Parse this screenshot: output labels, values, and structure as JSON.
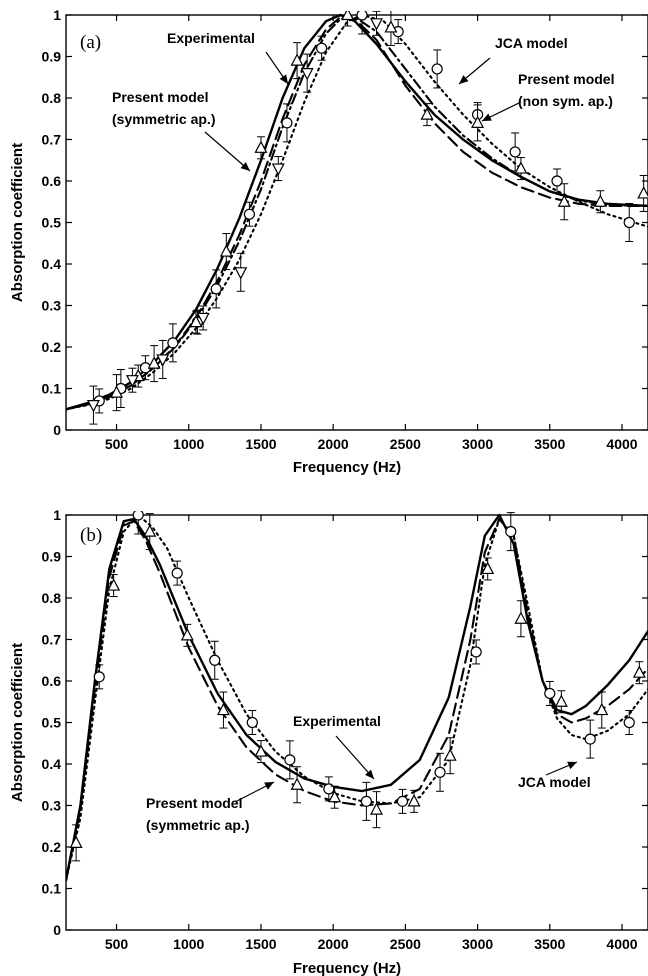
{
  "chart_data": [
    {
      "type": "line",
      "panel_label": "(a)",
      "xlabel": "Frequency (Hz)",
      "ylabel": "Absorption coefficient",
      "xlim": [
        150,
        4180
      ],
      "ylim": [
        0,
        1
      ],
      "xticks": [
        500,
        1000,
        1500,
        2000,
        2500,
        3000,
        3500,
        4000
      ],
      "yticks": [
        0,
        0.1,
        0.2,
        0.3,
        0.4,
        0.5,
        0.6,
        0.7,
        0.8,
        0.9,
        1
      ],
      "annotations": [
        {
          "text": "Experimental"
        },
        {
          "text": "JCA model"
        },
        {
          "text": "Present model (non sym. ap.)",
          "lines": [
            "Present model",
            "(non sym. ap.)"
          ]
        },
        {
          "text": "Present model (symmetric ap.)",
          "lines": [
            "Present model",
            "(symmetric ap.)"
          ]
        }
      ],
      "series": [
        {
          "id": "experimental",
          "style": "solid",
          "x": [
            150,
            300,
            450,
            600,
            750,
            900,
            1050,
            1200,
            1350,
            1500,
            1650,
            1800,
            1950,
            2050,
            2150,
            2300,
            2500,
            2700,
            2900,
            3100,
            3300,
            3500,
            3700,
            3900,
            4180
          ],
          "y": [
            0.05,
            0.065,
            0.085,
            0.115,
            0.16,
            0.215,
            0.29,
            0.39,
            0.51,
            0.65,
            0.8,
            0.92,
            0.985,
            1.0,
            0.985,
            0.93,
            0.84,
            0.76,
            0.7,
            0.65,
            0.61,
            0.575,
            0.555,
            0.545,
            0.54
          ]
        },
        {
          "id": "present-symmetric",
          "style": "dashed",
          "x": [
            150,
            300,
            450,
            600,
            750,
            900,
            1050,
            1200,
            1350,
            1500,
            1650,
            1800,
            1950,
            2050,
            2150,
            2300,
            2500,
            2700,
            2900,
            3100,
            3300,
            3500,
            3700,
            3900,
            4180
          ],
          "y": [
            0.05,
            0.062,
            0.08,
            0.108,
            0.15,
            0.2,
            0.27,
            0.36,
            0.47,
            0.6,
            0.75,
            0.88,
            0.965,
            0.995,
            0.99,
            0.94,
            0.83,
            0.74,
            0.67,
            0.62,
            0.585,
            0.56,
            0.545,
            0.54,
            0.54
          ]
        },
        {
          "id": "present-non-symmetric",
          "style": "dashdot",
          "x": [
            150,
            300,
            450,
            600,
            750,
            900,
            1050,
            1200,
            1350,
            1500,
            1650,
            1800,
            1950,
            2050,
            2150,
            2300,
            2500,
            2700,
            2900,
            3100,
            3300,
            3500,
            3700,
            3900,
            4180
          ],
          "y": [
            0.05,
            0.062,
            0.08,
            0.107,
            0.148,
            0.198,
            0.265,
            0.35,
            0.455,
            0.58,
            0.73,
            0.86,
            0.955,
            0.99,
            0.995,
            0.96,
            0.87,
            0.78,
            0.71,
            0.655,
            0.61,
            0.575,
            0.553,
            0.542,
            0.54
          ]
        },
        {
          "id": "jca",
          "style": "dotted",
          "x": [
            150,
            300,
            450,
            600,
            750,
            900,
            1050,
            1200,
            1350,
            1500,
            1650,
            1800,
            1950,
            2100,
            2200,
            2350,
            2500,
            2700,
            2900,
            3100,
            3300,
            3500,
            3700,
            3900,
            4180
          ],
          "y": [
            0.05,
            0.06,
            0.075,
            0.1,
            0.138,
            0.185,
            0.245,
            0.32,
            0.41,
            0.52,
            0.65,
            0.79,
            0.91,
            0.985,
            1.0,
            0.985,
            0.93,
            0.84,
            0.76,
            0.69,
            0.63,
            0.585,
            0.55,
            0.52,
            0.49
          ]
        }
      ],
      "markers": {
        "circle": {
          "x": [
            380,
            530,
            700,
            890,
            1060,
            1190,
            1420,
            1680,
            1920,
            2200,
            2450,
            2720,
            3000,
            3260,
            3550,
            4050
          ],
          "y": [
            0.07,
            0.1,
            0.15,
            0.21,
            0.26,
            0.34,
            0.52,
            0.74,
            0.92,
            1.0,
            0.96,
            0.87,
            0.76,
            0.67,
            0.6,
            0.5
          ]
        },
        "triangle": {
          "x": [
            500,
            650,
            760,
            1050,
            1260,
            1500,
            1750,
            2100,
            2400,
            2650,
            3000,
            3300,
            3600,
            3850,
            4150
          ],
          "y": [
            0.09,
            0.13,
            0.16,
            0.26,
            0.43,
            0.68,
            0.89,
            1.0,
            0.97,
            0.76,
            0.74,
            0.63,
            0.55,
            0.55,
            0.57
          ]
        },
        "triangle_down": {
          "x": [
            340,
            610,
            820,
            1100,
            1360,
            1620,
            1820,
            2300
          ],
          "y": [
            0.06,
            0.12,
            0.17,
            0.27,
            0.38,
            0.63,
            0.86,
            0.98
          ]
        }
      }
    },
    {
      "type": "line",
      "panel_label": "(b)",
      "xlabel": "Frequency (Hz)",
      "ylabel": "Absorption coefficient",
      "xlim": [
        150,
        4180
      ],
      "ylim": [
        0,
        1
      ],
      "xticks": [
        500,
        1000,
        1500,
        2000,
        2500,
        3000,
        3500,
        4000
      ],
      "yticks": [
        0,
        0.1,
        0.2,
        0.3,
        0.4,
        0.5,
        0.6,
        0.7,
        0.8,
        0.9,
        1
      ],
      "annotations": [
        {
          "text": "Experimental"
        },
        {
          "text": "Present model (symmetric ap.)",
          "lines": [
            "Present model",
            "(symmetric ap.)"
          ]
        },
        {
          "text": "JCA model"
        }
      ],
      "series": [
        {
          "id": "experimental",
          "style": "solid",
          "x": [
            150,
            250,
            350,
            450,
            550,
            620,
            700,
            800,
            1000,
            1200,
            1400,
            1600,
            1800,
            2000,
            2200,
            2400,
            2600,
            2800,
            2950,
            3050,
            3150,
            3250,
            3350,
            3450,
            3550,
            3650,
            3750,
            3900,
            4050,
            4180
          ],
          "y": [
            0.12,
            0.3,
            0.6,
            0.87,
            0.985,
            0.99,
            0.95,
            0.88,
            0.71,
            0.57,
            0.47,
            0.405,
            0.365,
            0.345,
            0.335,
            0.35,
            0.41,
            0.56,
            0.78,
            0.95,
            1.0,
            0.93,
            0.74,
            0.6,
            0.53,
            0.52,
            0.54,
            0.59,
            0.65,
            0.72
          ]
        },
        {
          "id": "present-symmetric",
          "style": "dashed",
          "x": [
            150,
            250,
            350,
            450,
            550,
            620,
            700,
            800,
            1000,
            1200,
            1400,
            1600,
            1800,
            2000,
            2200,
            2400,
            2600,
            2800,
            2950,
            3050,
            3150,
            3250,
            3350,
            3450,
            3550,
            3650,
            3750,
            3900,
            4050,
            4180
          ],
          "y": [
            0.12,
            0.29,
            0.58,
            0.85,
            0.975,
            0.985,
            0.94,
            0.86,
            0.68,
            0.54,
            0.44,
            0.375,
            0.335,
            0.31,
            0.3,
            0.305,
            0.34,
            0.47,
            0.7,
            0.91,
            0.99,
            0.95,
            0.76,
            0.6,
            0.52,
            0.5,
            0.51,
            0.54,
            0.58,
            0.63
          ]
        },
        {
          "id": "jca",
          "style": "dotted",
          "x": [
            150,
            250,
            350,
            450,
            550,
            650,
            750,
            850,
            1000,
            1200,
            1400,
            1600,
            1800,
            2000,
            2200,
            2400,
            2600,
            2800,
            2950,
            3050,
            3150,
            3250,
            3350,
            3450,
            3550,
            3650,
            3750,
            3900,
            4050,
            4180
          ],
          "y": [
            0.12,
            0.27,
            0.55,
            0.82,
            0.96,
            1.0,
            0.97,
            0.92,
            0.8,
            0.65,
            0.52,
            0.43,
            0.37,
            0.33,
            0.31,
            0.305,
            0.32,
            0.41,
            0.64,
            0.88,
            0.99,
            0.95,
            0.78,
            0.6,
            0.51,
            0.47,
            0.46,
            0.48,
            0.52,
            0.58
          ]
        }
      ],
      "markers": {
        "circle": {
          "x": [
            380,
            650,
            920,
            1180,
            1440,
            1700,
            1970,
            2230,
            2480,
            2740,
            2990,
            3230,
            3500,
            3780,
            4050
          ],
          "y": [
            0.61,
            1.0,
            0.86,
            0.65,
            0.5,
            0.41,
            0.34,
            0.31,
            0.31,
            0.38,
            0.67,
            0.96,
            0.57,
            0.46,
            0.5
          ]
        },
        "triangle": {
          "x": [
            220,
            480,
            730,
            990,
            1240,
            1500,
            1750,
            2010,
            2300,
            2560,
            2810,
            3070,
            3300,
            3580,
            3860,
            4120
          ],
          "y": [
            0.21,
            0.83,
            0.96,
            0.71,
            0.53,
            0.43,
            0.35,
            0.32,
            0.29,
            0.31,
            0.42,
            0.87,
            0.75,
            0.55,
            0.53,
            0.62
          ]
        }
      }
    }
  ]
}
